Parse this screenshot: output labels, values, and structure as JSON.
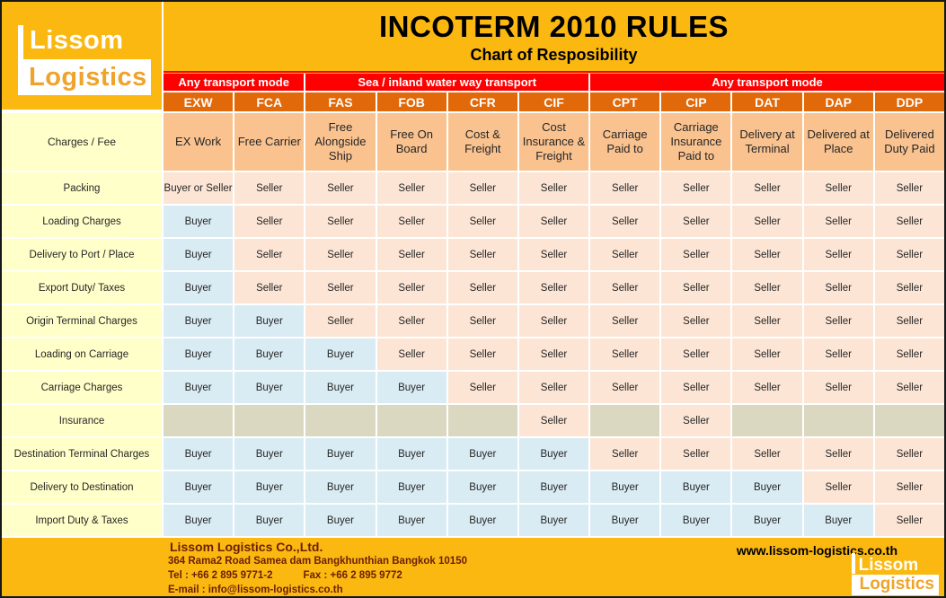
{
  "brand": {
    "name_top": "Lissom",
    "name_bottom": "Logistics"
  },
  "title": "INCOTERM 2010 RULES",
  "subtitle": "Chart of Resposibility",
  "transport_bands": [
    {
      "label": "Any transport mode",
      "span": 2
    },
    {
      "label": "Sea / inland water way transport",
      "span": 4
    },
    {
      "label": "Any transport mode",
      "span": 5
    }
  ],
  "row_header": "Charges / Fee",
  "terms": [
    {
      "code": "EXW",
      "name": "EX Work"
    },
    {
      "code": "FCA",
      "name": "Free Carrier"
    },
    {
      "code": "FAS",
      "name": "Free Alongside Ship"
    },
    {
      "code": "FOB",
      "name": "Free On Board"
    },
    {
      "code": "CFR",
      "name": "Cost & Freight"
    },
    {
      "code": "CIF",
      "name": "Cost Insurance & Freight"
    },
    {
      "code": "CPT",
      "name": "Carriage Paid to"
    },
    {
      "code": "CIP",
      "name": "Carriage Insurance Paid to"
    },
    {
      "code": "DAT",
      "name": "Delivery at Terminal"
    },
    {
      "code": "DAP",
      "name": "Delivered at Place"
    },
    {
      "code": "DDP",
      "name": "Delivered Duty Paid"
    }
  ],
  "rows": [
    {
      "label": "Packing",
      "cells": [
        "Buyer or Seller",
        "Seller",
        "Seller",
        "Seller",
        "Seller",
        "Seller",
        "Seller",
        "Seller",
        "Seller",
        "Seller",
        "Seller"
      ]
    },
    {
      "label": "Loading Charges",
      "cells": [
        "Buyer",
        "Seller",
        "Seller",
        "Seller",
        "Seller",
        "Seller",
        "Seller",
        "Seller",
        "Seller",
        "Seller",
        "Seller"
      ]
    },
    {
      "label": "Delivery to Port / Place",
      "cells": [
        "Buyer",
        "Seller",
        "Seller",
        "Seller",
        "Seller",
        "Seller",
        "Seller",
        "Seller",
        "Seller",
        "Seller",
        "Seller"
      ]
    },
    {
      "label": "Export Duty/ Taxes",
      "cells": [
        "Buyer",
        "Seller",
        "Seller",
        "Seller",
        "Seller",
        "Seller",
        "Seller",
        "Seller",
        "Seller",
        "Seller",
        "Seller"
      ]
    },
    {
      "label": "Origin Terminal Charges",
      "cells": [
        "Buyer",
        "Buyer",
        "Seller",
        "Seller",
        "Seller",
        "Seller",
        "Seller",
        "Seller",
        "Seller",
        "Seller",
        "Seller"
      ]
    },
    {
      "label": "Loading on Carriage",
      "cells": [
        "Buyer",
        "Buyer",
        "Buyer",
        "Seller",
        "Seller",
        "Seller",
        "Seller",
        "Seller",
        "Seller",
        "Seller",
        "Seller"
      ]
    },
    {
      "label": "Carriage Charges",
      "cells": [
        "Buyer",
        "Buyer",
        "Buyer",
        "Buyer",
        "Seller",
        "Seller",
        "Seller",
        "Seller",
        "Seller",
        "Seller",
        "Seller"
      ]
    },
    {
      "label": "Insurance",
      "cells": [
        "",
        "",
        "",
        "",
        "",
        "Seller",
        "",
        "Seller",
        "",
        "",
        ""
      ]
    },
    {
      "label": "Destination Terminal Charges",
      "cells": [
        "Buyer",
        "Buyer",
        "Buyer",
        "Buyer",
        "Buyer",
        "Buyer",
        "Seller",
        "Seller",
        "Seller",
        "Seller",
        "Seller"
      ]
    },
    {
      "label": "Delivery to Destination",
      "cells": [
        "Buyer",
        "Buyer",
        "Buyer",
        "Buyer",
        "Buyer",
        "Buyer",
        "Buyer",
        "Buyer",
        "Buyer",
        "Seller",
        "Seller"
      ]
    },
    {
      "label": "Import Duty & Taxes",
      "cells": [
        "Buyer",
        "Buyer",
        "Buyer",
        "Buyer",
        "Buyer",
        "Buyer",
        "Buyer",
        "Buyer",
        "Buyer",
        "Buyer",
        "Seller"
      ]
    }
  ],
  "footer": {
    "company": "Lissom Logistics Co.,Ltd.",
    "address": "364 Rama2 Road Samea dam Bangkhunthian Bangkok 10150",
    "tel": "Tel : +66 2 895 9771-2",
    "fax": "Fax : +66 2 895 9772",
    "email": "E-mail : info@lissom-logistics.co.th",
    "website": "www.lissom-logistics.co.th"
  },
  "colors": {
    "background_orange": "#FBB811",
    "band_red": "#FE0000",
    "header_orange": "#E2690A",
    "description_peach": "#F9C28F",
    "label_yellow": "#FFFFC9",
    "buyer_blue": "#D9EBF3",
    "seller_peach": "#FCE5D5",
    "empty_grey": "#DBD8C1",
    "footer_text_maroon": "#6B1F04"
  }
}
